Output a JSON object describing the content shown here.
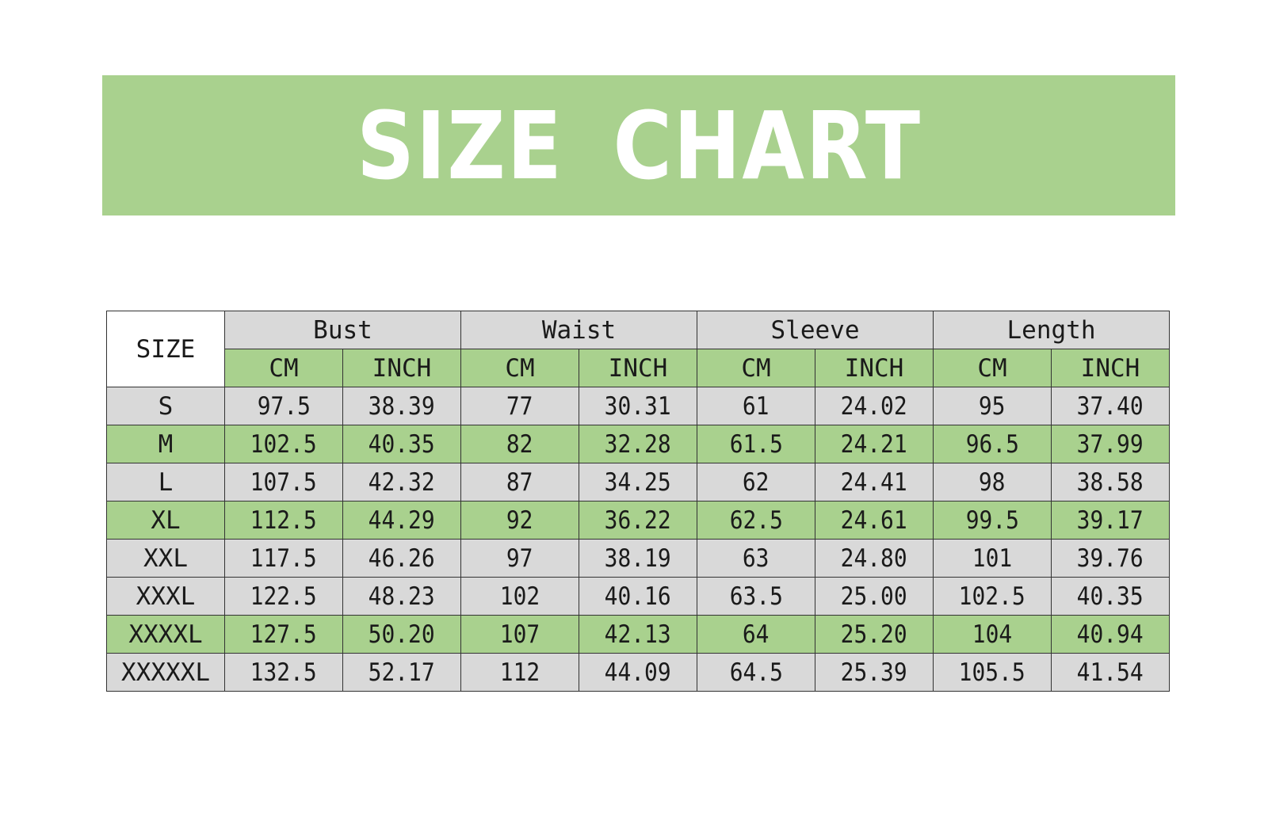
{
  "banner": {
    "title": "SIZE CHART",
    "color": "#a9d18e"
  },
  "table": {
    "size_header": "SIZE",
    "groups": [
      "Bust",
      "Waist",
      "Sleeve",
      "Length"
    ],
    "units": [
      "CM",
      "INCH"
    ],
    "rows": [
      {
        "size": "S",
        "values": [
          "97.5",
          "38.39",
          "77",
          "30.31",
          "61",
          "24.02",
          "95",
          "37.40"
        ],
        "shade": "grey"
      },
      {
        "size": "M",
        "values": [
          "102.5",
          "40.35",
          "82",
          "32.28",
          "61.5",
          "24.21",
          "96.5",
          "37.99"
        ],
        "shade": "green"
      },
      {
        "size": "L",
        "values": [
          "107.5",
          "42.32",
          "87",
          "34.25",
          "62",
          "24.41",
          "98",
          "38.58"
        ],
        "shade": "grey"
      },
      {
        "size": "XL",
        "values": [
          "112.5",
          "44.29",
          "92",
          "36.22",
          "62.5",
          "24.61",
          "99.5",
          "39.17"
        ],
        "shade": "green"
      },
      {
        "size": "XXL",
        "values": [
          "117.5",
          "46.26",
          "97",
          "38.19",
          "63",
          "24.80",
          "101",
          "39.76"
        ],
        "shade": "grey"
      },
      {
        "size": "XXXL",
        "values": [
          "122.5",
          "48.23",
          "102",
          "40.16",
          "63.5",
          "25.00",
          "102.5",
          "40.35"
        ],
        "shade": "grey"
      },
      {
        "size": "XXXXL",
        "values": [
          "127.5",
          "50.20",
          "107",
          "42.13",
          "64",
          "25.20",
          "104",
          "40.94"
        ],
        "shade": "green"
      },
      {
        "size": "XXXXXL",
        "values": [
          "132.5",
          "52.17",
          "112",
          "44.09",
          "64.5",
          "25.39",
          "105.5",
          "41.54"
        ],
        "shade": "grey"
      }
    ],
    "colors": {
      "grey": "#d9d9d9",
      "green": "#a9d18e",
      "border": "#333333"
    }
  }
}
